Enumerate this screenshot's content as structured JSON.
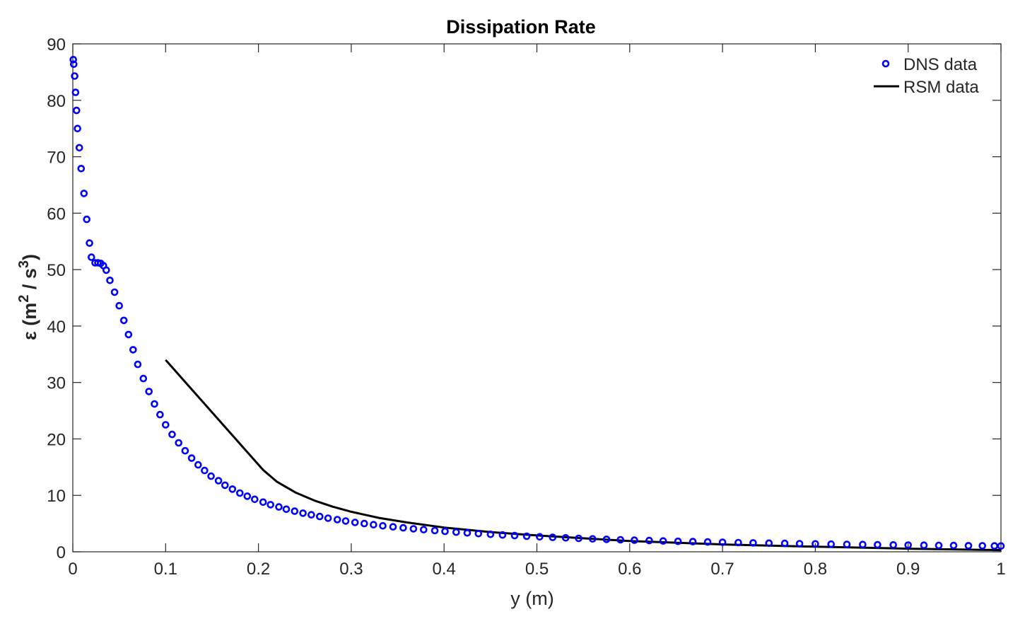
{
  "chart_data": {
    "type": "scatter",
    "title": "Dissipation Rate",
    "xlabel": "y (m)",
    "ylabel_main": "ε (m",
    "ylabel_sup1": "2",
    "ylabel_mid": " / s",
    "ylabel_sup2": "3",
    "ylabel_end": ")",
    "xlim": [
      0,
      1
    ],
    "ylim": [
      0,
      90
    ],
    "xticks": [
      0,
      0.1,
      0.2,
      0.3,
      0.4,
      0.5,
      0.6,
      0.7,
      0.8,
      0.9,
      1
    ],
    "xtick_labels": [
      "0",
      "0.1",
      "0.2",
      "0.3",
      "0.4",
      "0.5",
      "0.6",
      "0.7",
      "0.8",
      "0.9",
      "1"
    ],
    "yticks": [
      0,
      10,
      20,
      30,
      40,
      50,
      60,
      70,
      80,
      90
    ],
    "ytick_labels": [
      "0",
      "10",
      "20",
      "30",
      "40",
      "50",
      "60",
      "70",
      "80",
      "90"
    ],
    "grid": false,
    "legend_position": "top-right",
    "series": [
      {
        "name": "DNS data",
        "kind": "marker",
        "color": "#0000ff",
        "x": [
          0.0005,
          0.001,
          0.002,
          0.003,
          0.004,
          0.005,
          0.007,
          0.009,
          0.012,
          0.015,
          0.018,
          0.02,
          0.024,
          0.027,
          0.03,
          0.033,
          0.036,
          0.04,
          0.045,
          0.05,
          0.055,
          0.06,
          0.065,
          0.07,
          0.076,
          0.082,
          0.088,
          0.094,
          0.1,
          0.107,
          0.114,
          0.121,
          0.128,
          0.135,
          0.142,
          0.149,
          0.157,
          0.164,
          0.172,
          0.18,
          0.188,
          0.196,
          0.205,
          0.213,
          0.222,
          0.23,
          0.239,
          0.248,
          0.257,
          0.266,
          0.275,
          0.285,
          0.294,
          0.304,
          0.314,
          0.324,
          0.334,
          0.345,
          0.356,
          0.367,
          0.378,
          0.39,
          0.401,
          0.413,
          0.425,
          0.437,
          0.45,
          0.463,
          0.476,
          0.489,
          0.503,
          0.517,
          0.531,
          0.545,
          0.56,
          0.575,
          0.59,
          0.605,
          0.621,
          0.636,
          0.652,
          0.668,
          0.684,
          0.7,
          0.717,
          0.733,
          0.75,
          0.767,
          0.783,
          0.8,
          0.817,
          0.834,
          0.851,
          0.867,
          0.884,
          0.9,
          0.917,
          0.933,
          0.949,
          0.965,
          0.98,
          0.993,
          1.0
        ],
        "y": [
          87.2,
          86.4,
          84.3,
          81.4,
          78.2,
          75.0,
          71.6,
          67.9,
          63.5,
          58.9,
          54.7,
          52.2,
          51.2,
          51.2,
          51.1,
          50.7,
          49.9,
          48.1,
          46.0,
          43.6,
          41.0,
          38.5,
          35.8,
          33.2,
          30.7,
          28.4,
          26.2,
          24.3,
          22.5,
          20.8,
          19.3,
          17.9,
          16.6,
          15.4,
          14.4,
          13.4,
          12.6,
          11.8,
          11.1,
          10.4,
          9.85,
          9.3,
          8.8,
          8.35,
          7.95,
          7.55,
          7.2,
          6.85,
          6.55,
          6.25,
          5.95,
          5.7,
          5.45,
          5.2,
          5.0,
          4.8,
          4.6,
          4.42,
          4.25,
          4.08,
          3.92,
          3.76,
          3.62,
          3.48,
          3.35,
          3.22,
          3.1,
          2.98,
          2.87,
          2.76,
          2.66,
          2.56,
          2.47,
          2.38,
          2.29,
          2.21,
          2.13,
          2.06,
          1.99,
          1.92,
          1.86,
          1.8,
          1.74,
          1.69,
          1.63,
          1.58,
          1.53,
          1.49,
          1.44,
          1.4,
          1.36,
          1.32,
          1.29,
          1.25,
          1.22,
          1.19,
          1.16,
          1.13,
          1.11,
          1.08,
          1.06,
          1.04,
          1.03
        ]
      },
      {
        "name": "RSM data",
        "kind": "line",
        "color": "#000000",
        "x": [
          0.1,
          0.205,
          0.22,
          0.24,
          0.26,
          0.28,
          0.3,
          0.33,
          0.36,
          0.4,
          0.45,
          0.5,
          0.55,
          0.6,
          0.7,
          0.8,
          0.9,
          1.0
        ],
        "y": [
          34.0,
          14.5,
          12.4,
          10.5,
          9.1,
          8.0,
          7.1,
          6.0,
          5.2,
          4.3,
          3.5,
          2.9,
          2.4,
          1.9,
          1.3,
          0.9,
          0.55,
          0.3
        ]
      }
    ]
  }
}
